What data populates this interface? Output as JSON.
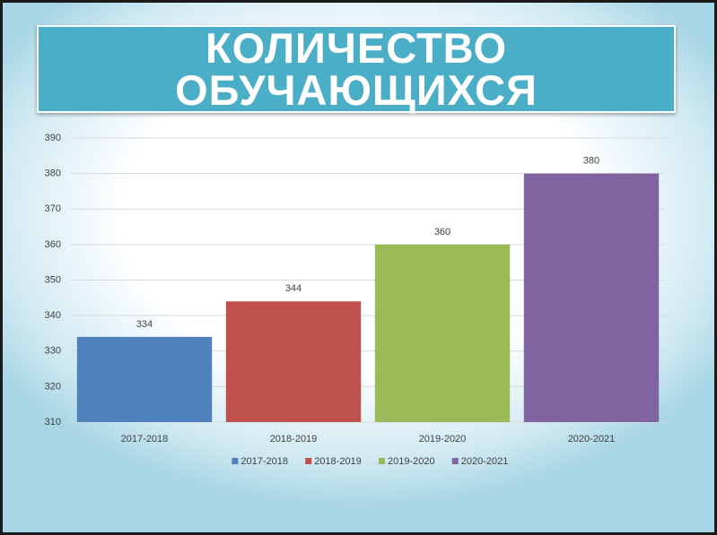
{
  "chart_data": {
    "type": "bar",
    "title": "КОЛИЧЕСТВО ОБУЧАЮЩИХСЯ",
    "categories": [
      "2017-2018",
      "2018-2019",
      "2019-2020",
      "2020-2021"
    ],
    "values": [
      334,
      344,
      360,
      380
    ],
    "colors": [
      "#4f81bd",
      "#c0504d",
      "#9bbb59",
      "#8064a2"
    ],
    "ylim": [
      310,
      390
    ],
    "yticks": [
      310,
      320,
      330,
      340,
      350,
      360,
      370,
      380,
      390
    ],
    "grid": true,
    "legend": "bottom"
  }
}
